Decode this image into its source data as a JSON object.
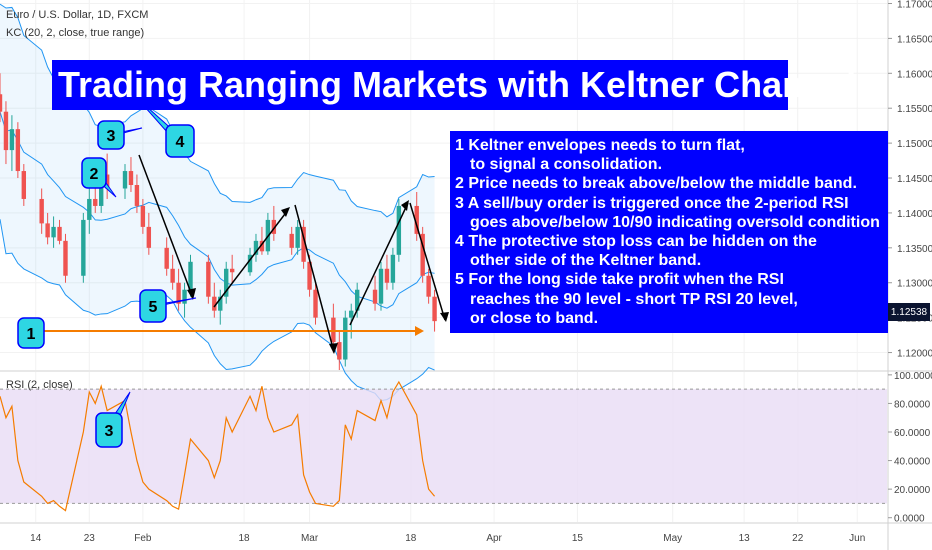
{
  "header": {
    "symbol": "Euro / U.S. Dollar, 1D, FXCM",
    "indicator": "KC (20, 2, close, true range)",
    "rsi_label": "RSI (2, close)"
  },
  "title": "Trading Ranging Markets with Keltner Channel",
  "steps": [
    {
      "line": "1 Keltner envelopes needs to turn flat,",
      "cont": "to signal a consolidation."
    },
    {
      "line": "2 Price needs to break above/below the middle band.",
      "cont": ""
    },
    {
      "line": "3 A sell/buy order is triggered once the 2-period RSI",
      "cont": "goes above/below 10/90 indicating oversold condition"
    },
    {
      "line": "4 The protective stop loss can be hidden on the",
      "cont": "other side of the Keltner band."
    },
    {
      "line": "5 For the long side take profit when the RSI",
      "cont": "reaches the 90 level - short TP RSI 20 level,"
    },
    {
      "line": "",
      "cont": "or close to band."
    }
  ],
  "price_tag": "1.12538",
  "colors": {
    "up": "#26a69a",
    "down": "#ef5350",
    "band": "#2196f3",
    "rsi_line": "#f57c00",
    "rsi_fill": "#e9dcf5",
    "callout": "#2ed6e3",
    "box": "#0000ff"
  },
  "chart_data": [
    {
      "type": "candlestick",
      "series": [
        {
          "name": "",
          "values": [
            [
              1.157,
              1.16,
              1.153,
              1.1545
            ],
            [
              1.1545,
              1.156,
              1.147,
              1.149
            ],
            [
              1.149,
              1.154,
              1.146,
              1.152
            ],
            [
              1.152,
              1.153,
              1.145,
              1.146
            ],
            [
              1.146,
              1.147,
              1.141,
              1.142
            ],
            [
              1.142,
              1.1435,
              1.137,
              1.1385
            ],
            [
              1.1385,
              1.14,
              1.1355,
              1.1365
            ],
            [
              1.1365,
              1.1395,
              1.135,
              1.138
            ],
            [
              1.138,
              1.139,
              1.1355,
              1.136
            ],
            [
              1.136,
              1.137,
              1.13,
              1.131
            ],
            [
              1.131,
              1.14,
              1.13,
              1.139
            ],
            [
              1.139,
              1.144,
              1.137,
              1.142
            ],
            [
              1.142,
              1.145,
              1.14,
              1.141
            ],
            [
              1.141,
              1.147,
              1.14,
              1.1455
            ],
            [
              1.1455,
              1.1485,
              1.142,
              1.1435
            ],
            [
              1.1435,
              1.147,
              1.142,
              1.146
            ],
            [
              1.146,
              1.148,
              1.143,
              1.144
            ],
            [
              1.144,
              1.1455,
              1.14,
              1.141
            ],
            [
              1.141,
              1.142,
              1.137,
              1.138
            ],
            [
              1.138,
              1.14,
              1.134,
              1.135
            ],
            [
              1.135,
              1.1365,
              1.131,
              1.132
            ],
            [
              1.132,
              1.134,
              1.129,
              1.13
            ],
            [
              1.13,
              1.132,
              1.126,
              1.127
            ],
            [
              1.127,
              1.13,
              1.125,
              1.129
            ],
            [
              1.129,
              1.134,
              1.128,
              1.133
            ],
            [
              1.133,
              1.134,
              1.127,
              1.128
            ],
            [
              1.128,
              1.13,
              1.125,
              1.126
            ],
            [
              1.126,
              1.129,
              1.124,
              1.128
            ],
            [
              1.128,
              1.133,
              1.127,
              1.132
            ],
            [
              1.132,
              1.134,
              1.13,
              1.1315
            ],
            [
              1.1315,
              1.135,
              1.131,
              1.134
            ],
            [
              1.134,
              1.137,
              1.133,
              1.136
            ],
            [
              1.136,
              1.138,
              1.134,
              1.1345
            ],
            [
              1.1345,
              1.14,
              1.134,
              1.139
            ],
            [
              1.139,
              1.141,
              1.136,
              1.137
            ],
            [
              1.137,
              1.138,
              1.134,
              1.135
            ],
            [
              1.135,
              1.139,
              1.134,
              1.138
            ],
            [
              1.138,
              1.139,
              1.132,
              1.133
            ],
            [
              1.133,
              1.134,
              1.128,
              1.129
            ],
            [
              1.129,
              1.13,
              1.124,
              1.125
            ],
            [
              1.125,
              1.127,
              1.12,
              1.1215
            ],
            [
              1.1215,
              1.123,
              1.1175,
              1.119
            ],
            [
              1.119,
              1.126,
              1.118,
              1.125
            ],
            [
              1.125,
              1.127,
              1.122,
              1.126
            ],
            [
              1.126,
              1.13,
              1.125,
              1.129
            ],
            [
              1.129,
              1.131,
              1.126,
              1.127
            ],
            [
              1.127,
              1.133,
              1.126,
              1.132
            ],
            [
              1.132,
              1.134,
              1.129,
              1.13
            ],
            [
              1.13,
              1.135,
              1.129,
              1.134
            ],
            [
              1.134,
              1.142,
              1.133,
              1.141
            ],
            [
              1.141,
              1.143,
              1.136,
              1.137
            ],
            [
              1.137,
              1.138,
              1.13,
              1.131
            ],
            [
              1.131,
              1.132,
              1.127,
              1.128
            ],
            [
              1.128,
              1.129,
              1.123,
              1.1245
            ]
          ]
        }
      ],
      "xlim": [
        "2018-01-08",
        "2018-06-06"
      ],
      "ylim": [
        1.1175,
        1.1705
      ],
      "x_ticks": [
        "14",
        "23",
        "Feb",
        "18",
        "Mar",
        "18",
        "Apr",
        "15",
        "May",
        "13",
        "22",
        "Jun"
      ],
      "y_ticks": [
        "1.17000",
        "1.16500",
        "1.16000",
        "1.15500",
        "1.15000",
        "1.14500",
        "1.14000",
        "1.13500",
        "1.13000",
        "1.12500",
        "1.12000"
      ],
      "overlays": [
        "keltner-upper",
        "keltner-middle",
        "keltner-lower"
      ]
    },
    {
      "type": "line",
      "series": [
        {
          "name": "",
          "values": [
            85,
            70,
            78,
            40,
            25,
            15,
            10,
            12,
            8,
            5,
            60,
            88,
            80,
            92,
            75,
            82,
            60,
            40,
            25,
            20,
            12,
            8,
            6,
            30,
            55,
            40,
            28,
            40,
            70,
            60,
            85,
            75,
            92,
            70,
            60,
            65,
            72,
            30,
            18,
            10,
            8,
            12,
            65,
            55,
            75,
            68,
            82,
            70,
            88,
            95,
            72,
            40,
            20,
            15
          ]
        }
      ],
      "ylim": [
        -3,
        102
      ],
      "y_ticks": [
        "100.0000",
        "80.0000",
        "60.0000",
        "40.0000",
        "20.0000",
        "0.0000"
      ]
    }
  ],
  "callouts": [
    "1",
    "2",
    "3",
    "4",
    "5",
    "3"
  ]
}
